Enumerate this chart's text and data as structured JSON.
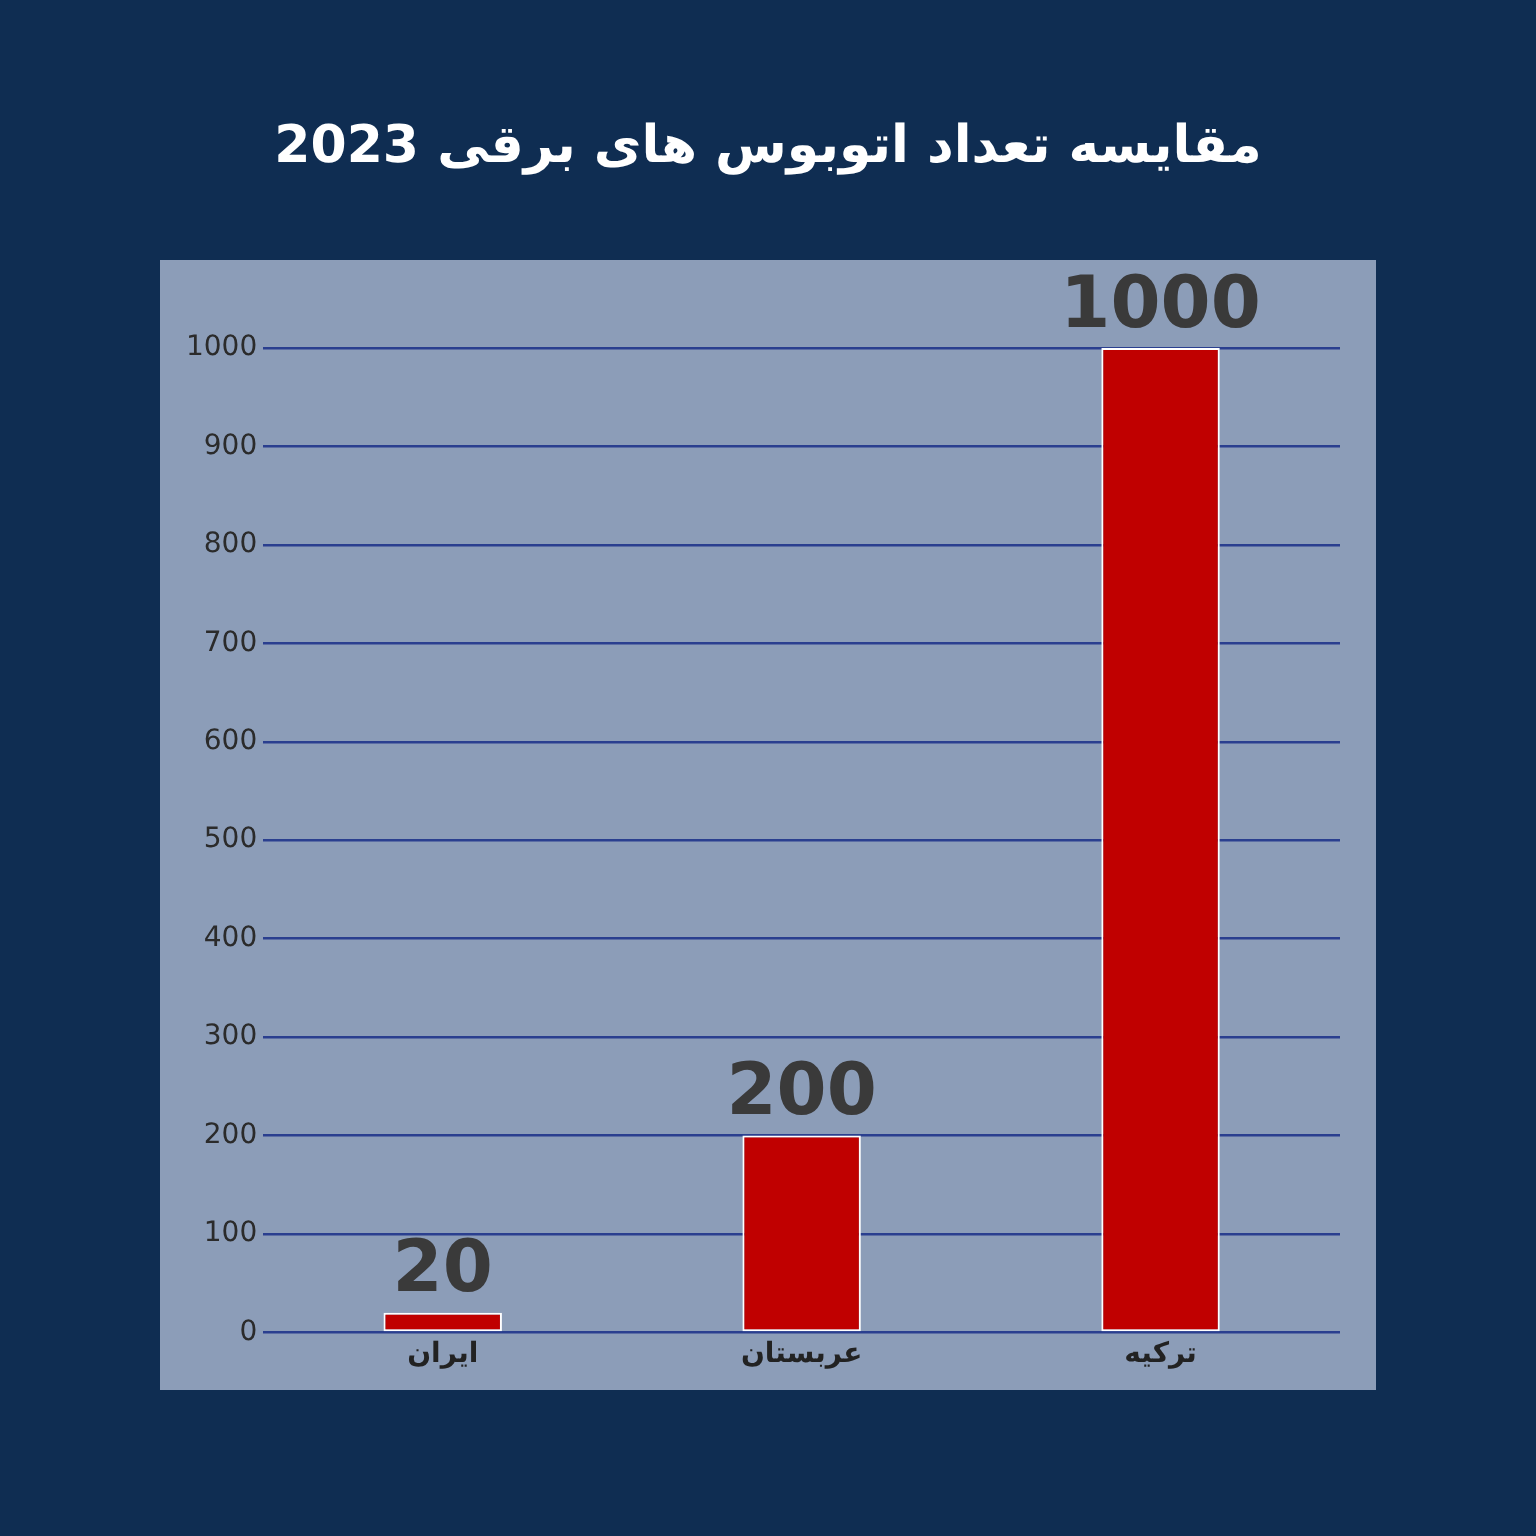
{
  "chart_data": {
    "type": "bar",
    "title": "مقایسه تعداد اتوبوس های برقی 2023",
    "categories": [
      "ایران",
      "عربستان",
      "ترکیه"
    ],
    "values": [
      20,
      200,
      1000
    ],
    "color": "#c00000",
    "ylim": [
      0,
      1000
    ],
    "yticks": [
      0,
      100,
      200,
      300,
      400,
      500,
      600,
      700,
      800,
      900,
      1000
    ],
    "grid": "y",
    "data_labels": true,
    "legend": false
  }
}
